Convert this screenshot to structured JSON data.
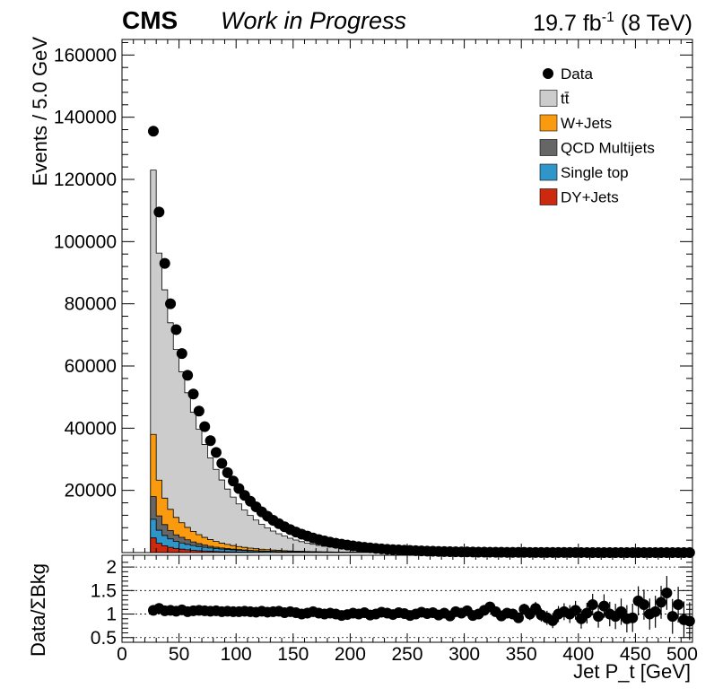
{
  "header": {
    "experiment": "CMS",
    "status": "Work in Progress",
    "lumi_value": "19.7 fb",
    "lumi_exp": "-1",
    "energy": " (8 TeV)"
  },
  "chart_data": [
    {
      "type": "area",
      "stacked": true,
      "ylabel": "Events / 5.0 GeV",
      "xlabel": "",
      "xlim": [
        0,
        500
      ],
      "ylim": [
        0,
        165000
      ],
      "xticks": [
        0,
        50,
        100,
        150,
        200,
        250,
        300,
        350,
        400,
        450,
        500
      ],
      "yticks": [
        20000,
        40000,
        60000,
        80000,
        100000,
        120000,
        140000,
        160000
      ],
      "yticklabels": [
        "20000",
        "40000",
        "60000",
        "80000",
        "100000",
        "120000",
        "140000",
        "160000"
      ],
      "bin_width": 5,
      "x_start": 25,
      "bin_centers": [
        27.5,
        32.5,
        37.5,
        42.5,
        47.5,
        52.5,
        57.5,
        62.5,
        67.5,
        72.5,
        77.5,
        82.5,
        87.5,
        92.5,
        97.5,
        102.5,
        107.5,
        112.5,
        117.5,
        122.5,
        127.5,
        132.5,
        137.5,
        142.5,
        147.5,
        152.5,
        157.5,
        162.5,
        167.5,
        172.5,
        177.5,
        182.5,
        187.5,
        192.5,
        197.5,
        202.5,
        207.5,
        212.5,
        217.5,
        222.5,
        227.5,
        232.5,
        237.5,
        242.5,
        247.5,
        252.5,
        257.5,
        262.5,
        267.5,
        272.5,
        277.5,
        282.5,
        287.5,
        292.5,
        297.5,
        302.5,
        307.5,
        312.5,
        317.5,
        322.5,
        327.5,
        332.5,
        337.5,
        342.5,
        347.5,
        352.5,
        357.5,
        362.5,
        367.5,
        372.5,
        377.5,
        382.5,
        387.5,
        392.5,
        397.5,
        402.5,
        407.5,
        412.5,
        417.5,
        422.5,
        427.5,
        432.5,
        437.5,
        442.5,
        447.5,
        452.5,
        457.5,
        462.5,
        467.5,
        472.5,
        477.5,
        482.5,
        487.5,
        492.5,
        497.5
      ],
      "series": [
        {
          "name": "DY+Jets",
          "color": "#cc2a0e",
          "values": [
            4700,
            3000,
            2200,
            1700,
            1300,
            1100,
            900,
            720,
            600,
            500,
            420,
            350,
            290,
            250,
            210,
            180,
            150,
            130,
            110,
            95,
            80,
            70,
            60,
            52,
            45,
            39,
            34,
            29,
            25,
            22,
            19,
            16,
            14,
            12,
            11,
            9,
            8,
            7,
            6,
            5,
            5,
            4,
            4,
            3,
            3,
            3,
            2,
            2,
            2,
            2,
            1,
            1,
            1,
            1,
            1,
            1,
            1,
            1,
            1,
            1,
            1,
            1,
            1,
            1,
            1,
            0,
            0,
            0,
            0,
            0,
            0,
            0,
            0,
            0,
            0,
            0,
            0,
            0,
            0,
            0,
            0,
            0,
            0,
            0,
            0,
            0,
            0,
            0,
            0,
            0,
            0,
            0,
            0,
            0,
            0
          ]
        },
        {
          "name": "Single top",
          "color": "#2f96c9",
          "values": [
            6000,
            4200,
            3300,
            2700,
            2300,
            2000,
            1750,
            1550,
            1360,
            1200,
            1060,
            940,
            830,
            740,
            650,
            580,
            510,
            450,
            400,
            360,
            320,
            280,
            250,
            220,
            195,
            175,
            155,
            138,
            122,
            108,
            96,
            85,
            76,
            68,
            60,
            53,
            47,
            42,
            37,
            33,
            29,
            26,
            23,
            20,
            18,
            16,
            14,
            13,
            11,
            10,
            9,
            8,
            7,
            6,
            6,
            5,
            4,
            4,
            4,
            3,
            3,
            3,
            2,
            2,
            2,
            2,
            2,
            1,
            1,
            1,
            1,
            1,
            1,
            1,
            1,
            1,
            1,
            1,
            1,
            0,
            0,
            0,
            0,
            0,
            0,
            0,
            0,
            0,
            0,
            0,
            0,
            0,
            0,
            0,
            0
          ]
        },
        {
          "name": "QCD Multijets",
          "color": "#666666",
          "values": [
            7300,
            4600,
            3500,
            2700,
            2100,
            1800,
            1450,
            1150,
            900,
            700,
            550,
            440,
            360,
            290,
            235,
            190,
            155,
            125,
            100,
            82,
            67,
            55,
            45,
            37,
            30,
            25,
            20,
            16,
            13,
            11,
            9,
            7,
            6,
            5,
            4,
            3,
            3,
            2,
            2,
            2,
            1,
            1,
            1,
            1,
            1,
            1,
            1,
            1,
            1,
            1,
            0,
            0,
            0,
            0,
            0,
            0,
            0,
            0,
            0,
            0,
            0,
            0,
            0,
            0,
            0,
            0,
            0,
            0,
            0,
            0,
            0,
            0,
            0,
            0,
            0,
            0,
            0,
            0,
            0,
            0,
            0,
            0,
            0,
            0,
            0,
            0,
            0,
            0,
            0,
            0,
            0,
            0,
            0,
            0,
            0
          ]
        },
        {
          "name": "W+Jets",
          "color": "#f99a0f",
          "values": [
            20000,
            11500,
            8500,
            6800,
            5600,
            4700,
            4000,
            3400,
            2900,
            2480,
            2130,
            1830,
            1570,
            1350,
            1160,
            1000,
            860,
            740,
            640,
            550,
            475,
            410,
            355,
            307,
            265,
            230,
            200,
            173,
            150,
            130,
            113,
            98,
            85,
            74,
            64,
            56,
            49,
            43,
            37,
            32,
            28,
            25,
            22,
            19,
            17,
            15,
            13,
            11,
            10,
            9,
            8,
            7,
            6,
            5,
            5,
            4,
            4,
            3,
            3,
            3,
            2,
            2,
            2,
            2,
            1,
            1,
            1,
            1,
            1,
            1,
            1,
            1,
            1,
            1,
            1,
            1,
            1,
            1,
            1,
            1,
            1,
            0,
            0,
            0,
            0,
            0,
            0,
            0,
            0,
            0,
            0,
            0,
            0,
            0,
            0
          ]
        },
        {
          "name": "tt̄",
          "color": "#cccccc",
          "values": [
            85000,
            73000,
            67000,
            60000,
            54000,
            48500,
            43300,
            38300,
            33900,
            29900,
            26300,
            23200,
            20300,
            17800,
            15600,
            13700,
            12000,
            10500,
            9200,
            8000,
            7000,
            6100,
            5350,
            4680,
            4090,
            3570,
            3110,
            2710,
            2370,
            2060,
            1800,
            1570,
            1370,
            1190,
            1040,
            905,
            788,
            686,
            597,
            520,
            453,
            394,
            343,
            299,
            260,
            227,
            198,
            172,
            150,
            131,
            114,
            99,
            86,
            75,
            66,
            57,
            50,
            43,
            38,
            33,
            29,
            25,
            22,
            19,
            17,
            15,
            13,
            11,
            10,
            9,
            8,
            7,
            6,
            5,
            5,
            4,
            4,
            3,
            3,
            3,
            2,
            2,
            2,
            2,
            2,
            1,
            1,
            1,
            1,
            1,
            1,
            1,
            1,
            1,
            1
          ]
        }
      ],
      "data": {
        "name": "Data",
        "color": "#000000",
        "values": [
          135500,
          109500,
          93000,
          80000,
          71700,
          64000,
          57000,
          51000,
          45500,
          40500,
          36000,
          32200,
          28700,
          25700,
          23000,
          20600,
          18400,
          16500,
          14700,
          13100,
          11700,
          10400,
          9300,
          8300,
          7400,
          6600,
          5900,
          5300,
          4700,
          4200,
          3750,
          3350,
          3000,
          2700,
          2400,
          2150,
          1900,
          1700,
          1500,
          1350,
          1200,
          1050,
          950,
          850,
          750,
          670,
          600,
          530,
          470,
          420,
          370,
          330,
          290,
          260,
          230,
          200,
          180,
          160,
          140,
          125,
          110,
          98,
          87,
          77,
          68,
          60,
          53,
          47,
          42,
          37,
          33,
          29,
          26,
          23,
          20,
          18,
          16,
          14,
          13,
          11,
          10,
          9,
          8,
          7,
          6,
          6,
          5,
          4,
          4,
          4,
          3,
          3,
          3,
          2,
          2
        ]
      },
      "legend": {
        "placement": "top-right",
        "entries": [
          "Data",
          "tt̄",
          "W+Jets",
          "QCD Multijets",
          "Single top",
          "DY+Jets"
        ]
      }
    },
    {
      "type": "scatter",
      "ylabel": "Data/ΣBkg",
      "xlabel": "Jet P_t [GeV]",
      "xlim": [
        0,
        500
      ],
      "ylim": [
        0.4,
        2.25
      ],
      "xticks": [
        0,
        50,
        100,
        150,
        200,
        250,
        300,
        350,
        400,
        450,
        500
      ],
      "xticklabels": [
        "0",
        "50",
        "100",
        "150",
        "200",
        "250",
        "300",
        "350",
        "400",
        "450",
        "500"
      ],
      "yticks": [
        0.5,
        1,
        1.5,
        2
      ],
      "yticklabels": [
        "0.5",
        "1",
        "1.5",
        "2"
      ],
      "gridlines_y": [
        0.5,
        1,
        1.5,
        2
      ],
      "x": [
        27.5,
        32.5,
        37.5,
        42.5,
        47.5,
        52.5,
        57.5,
        62.5,
        67.5,
        72.5,
        77.5,
        82.5,
        87.5,
        92.5,
        97.5,
        102.5,
        107.5,
        112.5,
        117.5,
        122.5,
        127.5,
        132.5,
        137.5,
        142.5,
        147.5,
        152.5,
        157.5,
        162.5,
        167.5,
        172.5,
        177.5,
        182.5,
        187.5,
        192.5,
        197.5,
        202.5,
        207.5,
        212.5,
        217.5,
        222.5,
        227.5,
        232.5,
        237.5,
        242.5,
        247.5,
        252.5,
        257.5,
        262.5,
        267.5,
        272.5,
        277.5,
        282.5,
        287.5,
        292.5,
        297.5,
        302.5,
        307.5,
        312.5,
        317.5,
        322.5,
        327.5,
        332.5,
        337.5,
        342.5,
        347.5,
        352.5,
        357.5,
        362.5,
        367.5,
        372.5,
        377.5,
        382.5,
        387.5,
        392.5,
        397.5,
        402.5,
        407.5,
        412.5,
        417.5,
        422.5,
        427.5,
        432.5,
        437.5,
        442.5,
        447.5,
        452.5,
        457.5,
        462.5,
        467.5,
        472.5,
        477.5,
        482.5,
        487.5,
        492.5,
        497.5
      ],
      "y": [
        1.08,
        1.12,
        1.07,
        1.08,
        1.06,
        1.09,
        1.05,
        1.07,
        1.08,
        1.07,
        1.06,
        1.07,
        1.05,
        1.06,
        1.05,
        1.05,
        1.06,
        1.05,
        1.04,
        1.06,
        1.04,
        1.05,
        1.06,
        1.03,
        1.05,
        1.03,
        1.0,
        1.02,
        1.05,
        1.02,
        1.0,
        1.02,
        1.0,
        0.97,
        0.99,
        1.02,
        1.0,
        1.03,
        0.98,
        1.0,
        1.04,
        1.02,
        0.99,
        1.03,
        1.01,
        0.97,
        1.0,
        1.04,
        1.01,
        1.03,
        0.98,
        1.02,
        0.96,
        1.05,
        1.02,
        1.07,
        0.97,
        1.0,
        1.08,
        1.15,
        1.05,
        0.96,
        1.02,
        1.0,
        0.92,
        1.1,
        1.0,
        1.12,
        0.98,
        0.92,
        0.86,
        1.0,
        1.05,
        1.0,
        1.08,
        0.9,
        1.02,
        1.2,
        0.95,
        1.17,
        1.0,
        0.95,
        1.05,
        0.9,
        0.92,
        1.28,
        1.2,
        1.0,
        1.05,
        1.25,
        1.45,
        0.95,
        1.2,
        0.88,
        0.85
      ],
      "yerr": [
        0.01,
        0.01,
        0.01,
        0.01,
        0.01,
        0.01,
        0.01,
        0.01,
        0.01,
        0.01,
        0.01,
        0.01,
        0.01,
        0.01,
        0.01,
        0.01,
        0.01,
        0.01,
        0.01,
        0.01,
        0.01,
        0.01,
        0.02,
        0.02,
        0.02,
        0.02,
        0.02,
        0.02,
        0.02,
        0.02,
        0.02,
        0.02,
        0.02,
        0.02,
        0.02,
        0.03,
        0.03,
        0.03,
        0.03,
        0.03,
        0.03,
        0.03,
        0.04,
        0.04,
        0.04,
        0.04,
        0.04,
        0.05,
        0.05,
        0.05,
        0.05,
        0.06,
        0.06,
        0.06,
        0.07,
        0.07,
        0.07,
        0.08,
        0.08,
        0.09,
        0.09,
        0.1,
        0.1,
        0.11,
        0.11,
        0.12,
        0.13,
        0.14,
        0.14,
        0.15,
        0.16,
        0.17,
        0.18,
        0.19,
        0.2,
        0.21,
        0.22,
        0.23,
        0.24,
        0.25,
        0.26,
        0.27,
        0.28,
        0.29,
        0.3,
        0.31,
        0.32,
        0.33,
        0.34,
        0.35,
        0.36,
        0.37,
        0.38,
        0.39,
        0.4
      ]
    }
  ]
}
